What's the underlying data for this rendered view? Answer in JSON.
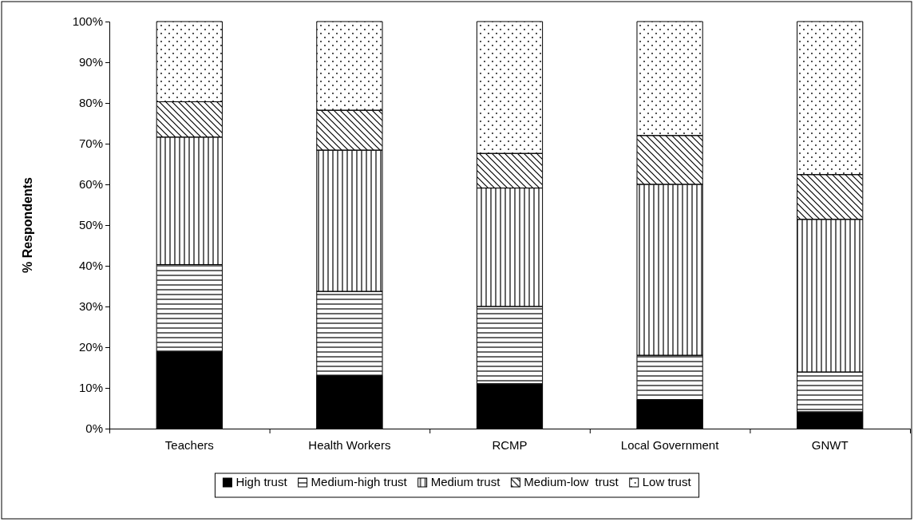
{
  "chart_data": {
    "type": "bar",
    "stacked": true,
    "ylabel": "% Respondents",
    "categories": [
      "Teachers",
      "Health Workers",
      "RCMP",
      "Local Government",
      "GNWT"
    ],
    "series": [
      {
        "name": "High trust",
        "color": "#000000",
        "values": [
          19,
          13.1,
          11,
          7.1,
          4.1
        ]
      },
      {
        "name": "Medium-high trust",
        "color": "#ffffff",
        "values": [
          21.3,
          20.6,
          19,
          10.9,
          9.8
        ]
      },
      {
        "name": "Medium trust",
        "color": "#ffffff",
        "values": [
          31.3,
          34.7,
          29.1,
          42,
          37.5
        ]
      },
      {
        "name": "Medium-low  trust",
        "color": "#ffffff",
        "values": [
          8.7,
          9.8,
          8.5,
          12,
          11
        ]
      },
      {
        "name": "Low trust",
        "color": "#ffffff",
        "values": [
          19.7,
          21.8,
          32.4,
          28,
          37.6
        ]
      }
    ],
    "ylim": [
      0,
      100
    ],
    "yticks": [
      {
        "value": 0,
        "label": "0%"
      },
      {
        "value": 10,
        "label": "10%"
      },
      {
        "value": 20,
        "label": "20%"
      },
      {
        "value": 30,
        "label": "30%"
      },
      {
        "value": 40,
        "label": "40%"
      },
      {
        "value": 50,
        "label": "50%"
      },
      {
        "value": 60,
        "label": "60%"
      },
      {
        "value": 70,
        "label": "70%"
      },
      {
        "value": 80,
        "label": "80%"
      },
      {
        "value": 90,
        "label": "90%"
      },
      {
        "value": 100,
        "label": "100%"
      }
    ],
    "grid": false,
    "legend": "bottom"
  }
}
